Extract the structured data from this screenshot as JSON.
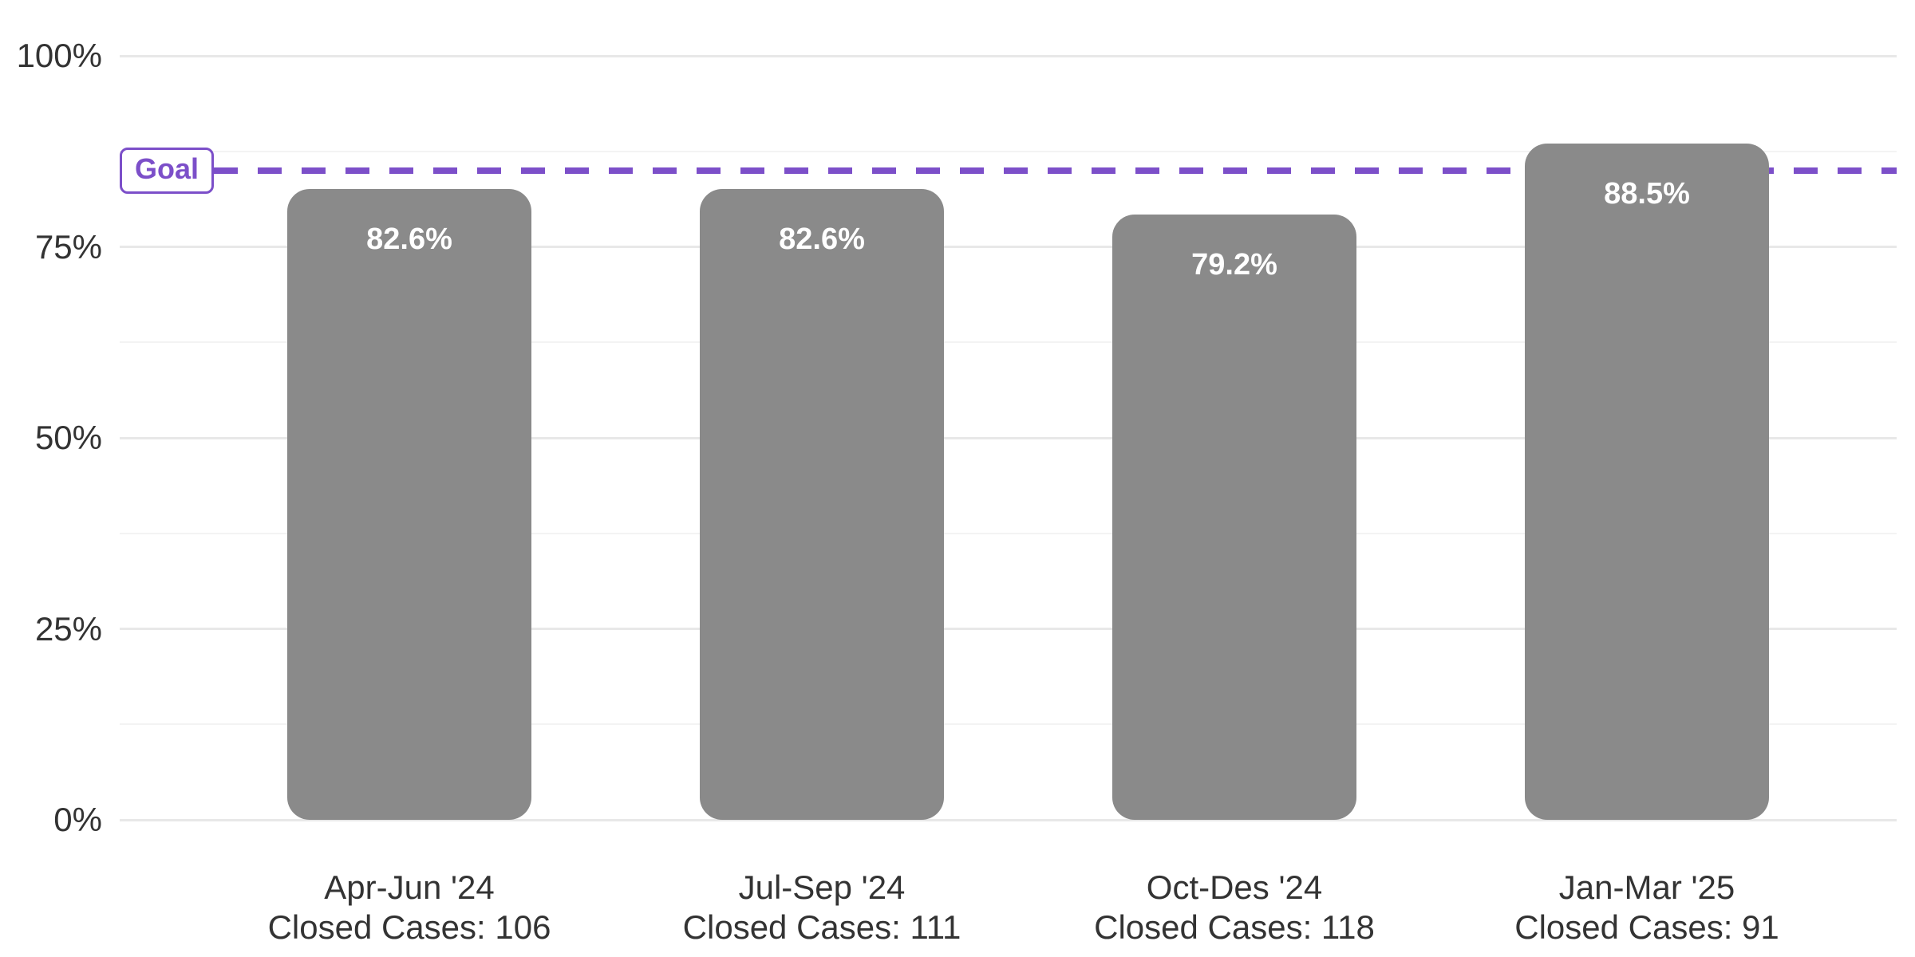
{
  "chart_data": {
    "type": "bar",
    "title": "",
    "categories": [
      "Apr-Jun '24",
      "Jul-Sep '24",
      "Oct-Des '24",
      "Jan-Mar '25"
    ],
    "category_sublabels": [
      "Closed Cases: 106",
      "Closed Cases: 111",
      "Closed Cases: 118",
      "Closed Cases: 91"
    ],
    "closed_cases": [
      106,
      111,
      118,
      91
    ],
    "values": [
      82.6,
      82.6,
      79.2,
      88.5
    ],
    "value_labels": [
      "82.6%",
      "82.6%",
      "79.2%",
      "88.5%"
    ],
    "goal": {
      "label": "Goal",
      "value": 85
    },
    "y_axis": {
      "min": 0,
      "max": 100,
      "major_ticks": [
        0,
        25,
        50,
        75,
        100
      ],
      "major_tick_labels": [
        "0%",
        "25%",
        "50%",
        "75%",
        "100%"
      ],
      "minor_ticks": [
        12.5,
        37.5,
        62.5,
        87.5
      ]
    },
    "grid": true,
    "legend": "none",
    "colors": {
      "bar": "#8a8a8a",
      "bar_label": "#ffffff",
      "goal": "#7c4fc9",
      "axis_text": "#333333",
      "grid_major": "#e8e8e8",
      "grid_minor": "#f3f3f3"
    }
  }
}
